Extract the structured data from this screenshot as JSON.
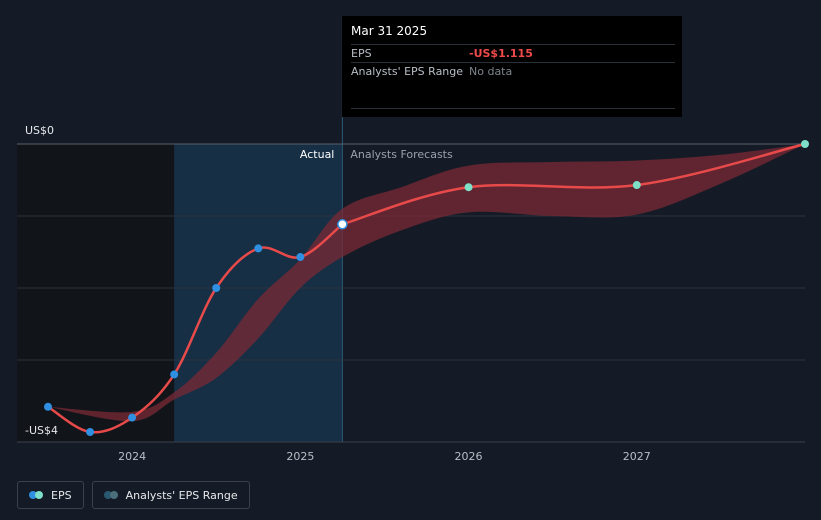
{
  "tooltip": {
    "date": "Mar 31 2025",
    "eps_label": "EPS",
    "eps_value": "-US$1.115",
    "range_label": "Analysts' EPS Range",
    "range_value": "No data"
  },
  "legend": {
    "eps_label": "EPS",
    "range_label": "Analysts' EPS Range"
  },
  "colors": {
    "eps_line": "#e84a4a",
    "actual_point": "#2f8fe0",
    "forecast_point": "#7ee0c8",
    "range_fill": "#7a2a35",
    "actual_region": "#16334a",
    "past_region": "#111418",
    "background": "#151b26"
  },
  "chart_data": {
    "type": "line",
    "ylabel_top": "US$0",
    "ylabel_bottom": "-US$4",
    "ylim": [
      -4,
      0
    ],
    "x_ticks": [
      "2024",
      "2025",
      "2026",
      "2027"
    ],
    "x_tick_values": [
      2024,
      2025,
      2026,
      2027
    ],
    "divider_labels": {
      "actual": "Actual",
      "forecast": "Analysts Forecasts"
    },
    "divider_x": 2025.25,
    "actual_band_start": 2024.25,
    "past_region_end": 2024.25,
    "grid": true,
    "series": [
      {
        "name": "EPS",
        "kind": "actual",
        "x": [
          2023.5,
          2023.75,
          2024.0,
          2024.25,
          2024.5,
          2024.75,
          2025.0,
          2025.25
        ],
        "y": [
          -3.65,
          -4.0,
          -3.8,
          -3.2,
          -2.0,
          -1.45,
          -1.57,
          -1.115
        ]
      },
      {
        "name": "EPS",
        "kind": "forecast",
        "x": [
          2025.25,
          2026.0,
          2027.0,
          2028.0
        ],
        "y": [
          -1.115,
          -0.6,
          -0.57,
          0.0
        ]
      }
    ],
    "range": {
      "x": [
        2023.5,
        2024.0,
        2024.25,
        2024.5,
        2024.75,
        2025.0,
        2025.25,
        2025.6,
        2026.0,
        2026.5,
        2027.0,
        2027.5,
        2028.0
      ],
      "high": [
        -3.65,
        -3.72,
        -3.45,
        -2.9,
        -2.15,
        -1.6,
        -0.9,
        -0.6,
        -0.3,
        -0.25,
        -0.23,
        -0.15,
        0.0
      ],
      "low": [
        -3.65,
        -3.85,
        -3.55,
        -3.25,
        -2.7,
        -2.0,
        -1.57,
        -1.2,
        -0.95,
        -1.0,
        -0.98,
        -0.55,
        0.0
      ]
    }
  }
}
